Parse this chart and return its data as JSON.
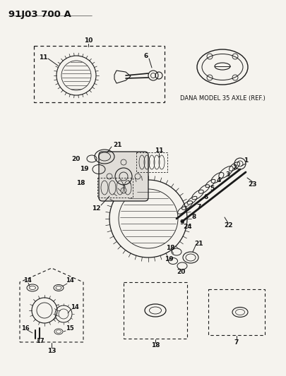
{
  "title": "91J03 700 A",
  "background_color": "#f5f3ee",
  "dana_label": "DANA MODEL 35 AXLE (REF.)",
  "line_color": "#1a1a1a",
  "text_color": "#111111",
  "fig_w": 4.05,
  "fig_h": 5.33,
  "dpi": 100
}
